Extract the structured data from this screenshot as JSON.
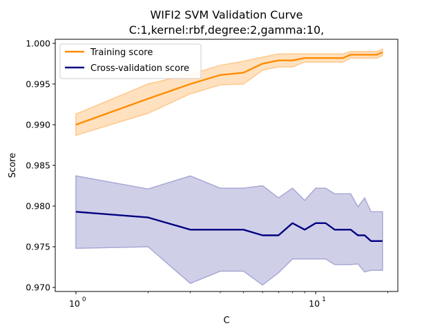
{
  "chart_data": {
    "type": "line",
    "title_line1": "WIFI2 SVM Validation Curve",
    "title_line2": "C:1,kernel:rbf,degree:2,gamma:10,",
    "xlabel": "C",
    "ylabel": "Score",
    "xscale": "log",
    "xlim": [
      0.82,
      22
    ],
    "ylim": [
      0.9695,
      1.0005
    ],
    "x_ticks": [
      {
        "value": 1,
        "base": "10",
        "exp": "0"
      },
      {
        "value": 10,
        "base": "10",
        "exp": "1"
      }
    ],
    "y_ticks": [
      {
        "value": 0.97,
        "label": "0.970"
      },
      {
        "value": 0.975,
        "label": "0.975"
      },
      {
        "value": 0.98,
        "label": "0.980"
      },
      {
        "value": 0.985,
        "label": "0.985"
      },
      {
        "value": 0.99,
        "label": "0.990"
      },
      {
        "value": 0.995,
        "label": "0.995"
      },
      {
        "value": 1.0,
        "label": "1.000"
      }
    ],
    "legend_position": "top-left",
    "x": [
      1,
      2,
      3,
      4,
      5,
      6,
      7,
      8,
      9,
      10,
      11,
      12,
      13,
      14,
      15,
      16,
      17,
      18,
      19
    ],
    "series": [
      {
        "name": "Training score",
        "color": "#ff8c00",
        "fill_color": "#ffc88a",
        "values": [
          0.99,
          0.9932,
          0.995,
          0.9961,
          0.9964,
          0.9975,
          0.9979,
          0.9979,
          0.9982,
          0.9982,
          0.9982,
          0.9982,
          0.9982,
          0.9986,
          0.9986,
          0.9986,
          0.9986,
          0.9986,
          0.9989
        ],
        "upper": [
          0.9913,
          0.995,
          0.9962,
          0.9973,
          0.9978,
          0.9983,
          0.9987,
          0.9987,
          0.9987,
          0.9987,
          0.9987,
          0.9987,
          0.9987,
          0.999,
          0.999,
          0.999,
          0.999,
          0.999,
          0.9993
        ],
        "lower": [
          0.9887,
          0.9914,
          0.9938,
          0.9949,
          0.995,
          0.9967,
          0.9971,
          0.9971,
          0.9977,
          0.9977,
          0.9977,
          0.9977,
          0.9977,
          0.9982,
          0.9982,
          0.9982,
          0.9982,
          0.9982,
          0.9985
        ]
      },
      {
        "name": "Cross-validation score",
        "color": "#000080",
        "fill_color": "#a8a8d6",
        "values": [
          0.9793,
          0.9786,
          0.9771,
          0.9771,
          0.9771,
          0.9764,
          0.9764,
          0.9779,
          0.9771,
          0.9779,
          0.9779,
          0.9771,
          0.9771,
          0.9771,
          0.9764,
          0.9764,
          0.9757,
          0.9757,
          0.9757
        ],
        "upper": [
          0.9837,
          0.9821,
          0.9837,
          0.9822,
          0.9822,
          0.9825,
          0.981,
          0.9822,
          0.9807,
          0.9822,
          0.9822,
          0.9815,
          0.9815,
          0.9815,
          0.9799,
          0.981,
          0.9793,
          0.9793,
          0.9793
        ],
        "lower": [
          0.9748,
          0.975,
          0.9705,
          0.972,
          0.972,
          0.9703,
          0.9718,
          0.9735,
          0.9735,
          0.9735,
          0.9735,
          0.9728,
          0.9728,
          0.9728,
          0.9729,
          0.9719,
          0.9721,
          0.9721,
          0.9721
        ]
      }
    ]
  }
}
